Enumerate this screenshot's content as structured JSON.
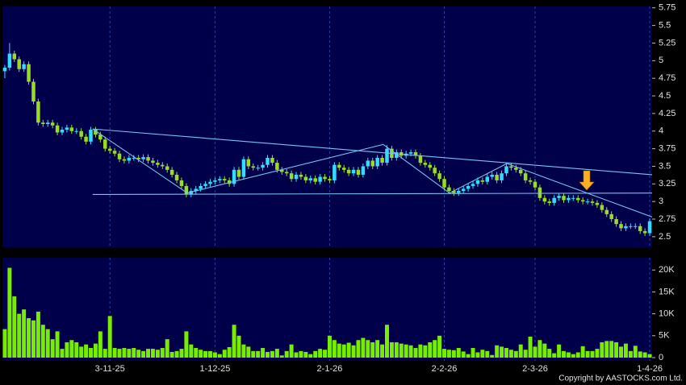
{
  "chart_data": {
    "type": "candlestick",
    "categories": [
      null,
      null,
      null,
      null,
      null,
      null,
      null,
      null,
      null,
      null,
      null,
      null,
      null,
      null,
      null,
      null,
      null,
      null,
      null,
      null,
      null,
      null,
      "3-11-25",
      null,
      null,
      null,
      null,
      null,
      null,
      null,
      null,
      null,
      null,
      null,
      null,
      null,
      null,
      null,
      null,
      null,
      null,
      null,
      null,
      null,
      "1-12-25",
      null,
      null,
      null,
      null,
      null,
      null,
      null,
      null,
      null,
      null,
      null,
      null,
      null,
      null,
      null,
      null,
      null,
      null,
      null,
      null,
      null,
      null,
      null,
      "2-1-26",
      null,
      null,
      null,
      null,
      null,
      null,
      null,
      null,
      null,
      null,
      null,
      null,
      null,
      null,
      null,
      null,
      null,
      null,
      null,
      null,
      null,
      null,
      null,
      "2-2-26",
      null,
      null,
      null,
      null,
      null,
      null,
      null,
      null,
      null,
      null,
      null,
      null,
      null,
      null,
      null,
      null,
      null,
      null,
      "2-3-26",
      null,
      null,
      null,
      null,
      null,
      null,
      null,
      null,
      null,
      null,
      null,
      null,
      null,
      null,
      null,
      null,
      null,
      null,
      null,
      null,
      null,
      null,
      null,
      "1-4-26"
    ],
    "open": [
      4.85,
      4.9,
      5.1,
      5.02,
      4.88,
      4.95,
      4.7,
      4.42,
      4.12,
      4.1,
      4.12,
      4.08,
      3.98,
      4.02,
      4.05,
      4.0,
      4.0,
      3.92,
      3.85,
      4.02,
      3.95,
      3.88,
      3.75,
      3.72,
      3.68,
      3.6,
      3.58,
      3.62,
      3.62,
      3.6,
      3.63,
      3.58,
      3.55,
      3.52,
      3.5,
      3.45,
      3.38,
      3.3,
      3.22,
      3.1,
      3.15,
      3.18,
      3.22,
      3.25,
      3.28,
      3.3,
      3.32,
      3.3,
      3.25,
      3.45,
      3.35,
      3.6,
      3.5,
      3.48,
      3.48,
      3.52,
      3.62,
      3.55,
      3.45,
      3.42,
      3.4,
      3.32,
      3.38,
      3.35,
      3.3,
      3.33,
      3.28,
      3.35,
      3.32,
      3.3,
      3.52,
      3.48,
      3.45,
      3.4,
      3.45,
      3.38,
      3.5,
      3.58,
      3.5,
      3.62,
      3.55,
      3.75,
      3.62,
      3.7,
      3.65,
      3.68,
      3.7,
      3.65,
      3.55,
      3.52,
      3.48,
      3.4,
      3.32,
      3.2,
      3.15,
      3.12,
      3.15,
      3.18,
      3.22,
      3.25,
      3.3,
      3.28,
      3.35,
      3.38,
      3.3,
      3.4,
      3.5,
      3.48,
      3.45,
      3.4,
      3.3,
      3.28,
      3.2,
      3.05,
      3.0,
      2.98,
      3.05,
      3.08,
      3.02,
      3.05,
      3.05,
      3.02,
      3.0,
      3.0,
      2.98,
      2.95,
      2.88,
      2.82,
      2.75,
      2.68,
      2.62,
      2.65,
      2.65,
      2.65,
      2.58,
      2.55
    ],
    "high": [
      4.94,
      5.25,
      5.14,
      5.06,
      4.99,
      4.99,
      4.74,
      4.46,
      4.16,
      4.16,
      4.16,
      4.12,
      4.06,
      4.09,
      4.09,
      4.04,
      4.04,
      3.96,
      4.06,
      4.06,
      3.99,
      3.92,
      3.79,
      3.76,
      3.72,
      3.64,
      3.66,
      3.66,
      3.66,
      3.67,
      3.67,
      3.62,
      3.59,
      3.56,
      3.54,
      3.49,
      3.42,
      3.34,
      3.26,
      3.19,
      3.22,
      3.26,
      3.29,
      3.32,
      3.34,
      3.36,
      3.36,
      3.34,
      3.49,
      3.49,
      3.64,
      3.64,
      3.54,
      3.52,
      3.56,
      3.66,
      3.66,
      3.59,
      3.49,
      3.46,
      3.44,
      3.42,
      3.42,
      3.39,
      3.37,
      3.37,
      3.39,
      3.39,
      3.36,
      3.56,
      3.56,
      3.52,
      3.49,
      3.49,
      3.49,
      3.54,
      3.62,
      3.62,
      3.66,
      3.66,
      3.8,
      3.79,
      3.74,
      3.74,
      3.72,
      3.74,
      3.74,
      3.69,
      3.59,
      3.56,
      3.52,
      3.44,
      3.36,
      3.24,
      3.19,
      3.19,
      3.22,
      3.26,
      3.29,
      3.34,
      3.34,
      3.39,
      3.42,
      3.42,
      3.44,
      3.54,
      3.54,
      3.52,
      3.49,
      3.44,
      3.34,
      3.32,
      3.24,
      3.09,
      3.04,
      3.09,
      3.12,
      3.12,
      3.09,
      3.09,
      3.09,
      3.06,
      3.04,
      3.04,
      3.02,
      2.99,
      2.92,
      2.86,
      2.79,
      2.72,
      2.69,
      2.69,
      2.69,
      2.69,
      2.62,
      2.76
    ],
    "low": [
      4.75,
      4.86,
      4.98,
      4.84,
      4.84,
      4.66,
      4.38,
      4.08,
      4.06,
      4.06,
      4.04,
      3.94,
      3.94,
      3.98,
      3.96,
      3.96,
      3.88,
      3.81,
      3.81,
      3.91,
      3.84,
      3.71,
      3.68,
      3.64,
      3.56,
      3.54,
      3.54,
      3.58,
      3.56,
      3.56,
      3.54,
      3.51,
      3.48,
      3.46,
      3.41,
      3.34,
      3.26,
      3.18,
      3.06,
      3.06,
      3.11,
      3.14,
      3.18,
      3.21,
      3.24,
      3.26,
      3.26,
      3.21,
      3.21,
      3.31,
      3.31,
      3.46,
      3.44,
      3.44,
      3.44,
      3.48,
      3.51,
      3.41,
      3.38,
      3.36,
      3.28,
      3.28,
      3.31,
      3.26,
      3.26,
      3.24,
      3.24,
      3.28,
      3.26,
      3.26,
      3.44,
      3.41,
      3.36,
      3.36,
      3.34,
      3.34,
      3.46,
      3.46,
      3.46,
      3.51,
      3.51,
      3.58,
      3.58,
      3.61,
      3.61,
      3.64,
      3.61,
      3.51,
      3.48,
      3.44,
      3.36,
      3.28,
      3.16,
      3.11,
      3.08,
      3.08,
      3.11,
      3.14,
      3.18,
      3.21,
      3.24,
      3.24,
      3.31,
      3.26,
      3.26,
      3.36,
      3.44,
      3.41,
      3.36,
      3.26,
      3.24,
      3.16,
      3.01,
      2.96,
      2.94,
      2.94,
      3.01,
      2.98,
      2.98,
      3.01,
      2.98,
      2.96,
      2.96,
      2.94,
      2.91,
      2.84,
      2.78,
      2.71,
      2.64,
      2.58,
      2.58,
      2.61,
      2.61,
      2.54,
      2.51,
      2.51
    ],
    "close": [
      4.9,
      5.1,
      5.02,
      4.88,
      4.95,
      4.7,
      4.42,
      4.12,
      4.1,
      4.12,
      4.08,
      3.98,
      4.02,
      4.05,
      4.0,
      4.0,
      3.92,
      3.85,
      4.02,
      3.95,
      3.88,
      3.75,
      3.72,
      3.68,
      3.6,
      3.58,
      3.62,
      3.62,
      3.6,
      3.63,
      3.58,
      3.55,
      3.52,
      3.5,
      3.45,
      3.38,
      3.3,
      3.22,
      3.1,
      3.15,
      3.18,
      3.22,
      3.25,
      3.28,
      3.3,
      3.32,
      3.3,
      3.25,
      3.45,
      3.35,
      3.6,
      3.5,
      3.48,
      3.48,
      3.52,
      3.62,
      3.55,
      3.45,
      3.42,
      3.4,
      3.32,
      3.38,
      3.35,
      3.3,
      3.33,
      3.28,
      3.35,
      3.32,
      3.3,
      3.52,
      3.48,
      3.45,
      3.4,
      3.45,
      3.38,
      3.5,
      3.58,
      3.5,
      3.62,
      3.55,
      3.75,
      3.62,
      3.7,
      3.65,
      3.68,
      3.7,
      3.65,
      3.55,
      3.52,
      3.48,
      3.4,
      3.32,
      3.2,
      3.15,
      3.12,
      3.15,
      3.18,
      3.22,
      3.25,
      3.3,
      3.28,
      3.35,
      3.38,
      3.3,
      3.4,
      3.5,
      3.48,
      3.45,
      3.4,
      3.3,
      3.28,
      3.2,
      3.05,
      3.0,
      2.98,
      3.05,
      3.08,
      3.02,
      3.05,
      3.05,
      3.02,
      3.0,
      3.0,
      2.98,
      2.95,
      2.88,
      2.82,
      2.75,
      2.68,
      2.62,
      2.65,
      2.65,
      2.65,
      2.58,
      2.55,
      2.72
    ],
    "up_color": "#33ddff",
    "down_color": "#99dd22",
    "ylim": [
      2.35,
      5.77
    ],
    "yticks": [
      2.5,
      2.75,
      3,
      3.25,
      3.5,
      3.75,
      4,
      4.25,
      4.5,
      4.75,
      5,
      5.25,
      5.5,
      5.75
    ],
    "trend_color": "#77c4f0",
    "trend_lines": [
      {
        "x": [
          18.4,
          135.5
        ],
        "y": [
          4.03,
          3.38
        ]
      },
      {
        "x": [
          18.4,
          135.5
        ],
        "y": [
          3.1,
          3.12
        ]
      },
      {
        "x": [
          18.4,
          38.2
        ],
        "y": [
          4.03,
          3.12
        ]
      },
      {
        "x": [
          38.2,
          79.2
        ],
        "y": [
          3.12,
          3.81
        ]
      },
      {
        "x": [
          79.2,
          93.1
        ],
        "y": [
          3.81,
          3.12
        ]
      },
      {
        "x": [
          93.1,
          105.1
        ],
        "y": [
          3.12,
          3.54
        ]
      },
      {
        "x": [
          105.1,
          135.5
        ],
        "y": [
          3.54,
          2.78
        ]
      }
    ],
    "volume": {
      "color": "#77ee00",
      "values": [
        6500,
        20500,
        14000,
        10000,
        11000,
        9000,
        8500,
        10500,
        7500,
        6500,
        4200,
        6000,
        2000,
        3500,
        4000,
        3500,
        2500,
        3000,
        2200,
        3200,
        6000,
        2000,
        9500,
        2200,
        2000,
        2200,
        2000,
        2200,
        1800,
        1500,
        2000,
        2000,
        1800,
        2200,
        4200,
        1300,
        1500,
        2000,
        6000,
        3000,
        2200,
        1800,
        1500,
        1500,
        1200,
        800,
        1800,
        2400,
        7500,
        5000,
        3000,
        2500,
        1500,
        1500,
        2200,
        1300,
        1500,
        2000,
        500,
        1500,
        3000,
        1200,
        1500,
        1300,
        800,
        1500,
        2000,
        1800,
        5000,
        4000,
        3200,
        3000,
        3400,
        2800,
        4000,
        4500,
        4000,
        3500,
        4000,
        3000,
        7500,
        3500,
        3500,
        3200,
        3000,
        2800,
        2200,
        3000,
        2800,
        3500,
        4000,
        5000,
        2000,
        1800,
        1700,
        2200,
        1400,
        800,
        2200,
        1200,
        1800,
        1500,
        600,
        2800,
        2500,
        2200,
        1800,
        1500,
        3000,
        1800,
        4800,
        2500,
        4000,
        3200,
        2000,
        1000,
        3000,
        1500,
        1200,
        800,
        1200,
        2600,
        1500,
        1500,
        2000,
        3500,
        3800,
        3800,
        3500,
        2500,
        3200,
        1500,
        2700,
        1400,
        1200,
        800
      ],
      "ylim": [
        0,
        22800
      ],
      "yticks": [
        0,
        {
          "value": 5000,
          "label": "5K"
        },
        {
          "value": 10000,
          "label": "10K"
        },
        {
          "value": 15000,
          "label": "15K"
        },
        {
          "value": 20000,
          "label": "20K"
        }
      ]
    },
    "copyright": "Copyright by AASTOCKS.com Ltd."
  }
}
